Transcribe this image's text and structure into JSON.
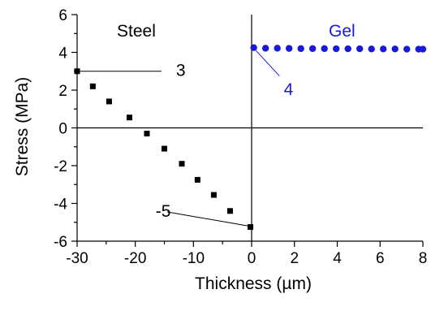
{
  "chart_data": {
    "type": "scatter",
    "xlabel": "Thickness (µm)",
    "ylabel": "Stress (MPa)",
    "xlim": [
      -30,
      8
    ],
    "ylim": [
      -6,
      6
    ],
    "x_ticks": [
      -30,
      -20,
      -10,
      0,
      2,
      4,
      6,
      8
    ],
    "x_tick_labels": [
      "-30",
      "-20",
      "-10",
      "0",
      "2",
      "4",
      "6",
      "8"
    ],
    "y_ticks": [
      -6,
      -4,
      -2,
      0,
      2,
      4,
      6
    ],
    "y_tick_labels": [
      "-6",
      "-4",
      "-2",
      "0",
      "2",
      "4",
      "6"
    ],
    "x_break": 0,
    "reference_lines": {
      "x": 0,
      "y": 0
    },
    "grid": false,
    "regions": [
      {
        "label": "Steel",
        "color": "#000000"
      },
      {
        "label": "Gel",
        "color": "#1a1ad6"
      }
    ],
    "series": [
      {
        "marker": "square",
        "color": "#000000",
        "points": [
          [
            -30,
            3.0
          ],
          [
            -27.3,
            2.2
          ],
          [
            -24.5,
            1.4
          ],
          [
            -21.0,
            0.55
          ],
          [
            -18.0,
            -0.3
          ],
          [
            -15.0,
            -1.1
          ],
          [
            -12.0,
            -1.9
          ],
          [
            -9.3,
            -2.75
          ],
          [
            -6.5,
            -3.55
          ],
          [
            -3.7,
            -4.4
          ],
          [
            -0.2,
            -5.25
          ]
        ]
      },
      {
        "marker": "circle",
        "color": "#1a1ad6",
        "points": [
          [
            0.1,
            4.25
          ],
          [
            0.65,
            4.22
          ],
          [
            1.2,
            4.22
          ],
          [
            1.75,
            4.21
          ],
          [
            2.3,
            4.2
          ],
          [
            2.85,
            4.2
          ],
          [
            3.4,
            4.2
          ],
          [
            3.95,
            4.19
          ],
          [
            4.5,
            4.19
          ],
          [
            5.05,
            4.19
          ],
          [
            5.6,
            4.18
          ],
          [
            6.15,
            4.18
          ],
          [
            6.7,
            4.18
          ],
          [
            7.25,
            4.17
          ],
          [
            7.8,
            4.17
          ],
          [
            8.0,
            4.17
          ]
        ]
      }
    ],
    "annotations": [
      {
        "text": "3",
        "color": "#000000",
        "x": -13.0,
        "y": 3.05,
        "line_from": [
          -30,
          3.0
        ],
        "line_to": [
          -15.5,
          3.0
        ]
      },
      {
        "text": "4",
        "color": "#1a1ad6",
        "x": 1.5,
        "y": 2.05,
        "line_from": [
          0.2,
          4.1
        ],
        "line_to": [
          1.3,
          2.75
        ]
      },
      {
        "text": "-5",
        "color": "#000000",
        "x": -16.5,
        "y": -4.4,
        "line_from": [
          -14.5,
          -4.45
        ],
        "line_to": [
          -0.5,
          -5.2
        ]
      }
    ]
  }
}
